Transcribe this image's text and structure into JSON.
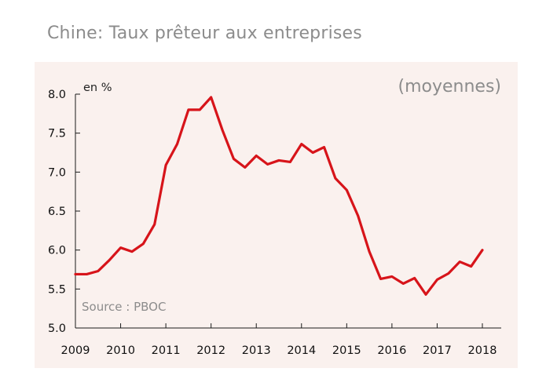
{
  "chart_data": {
    "type": "line",
    "title": "Chine: Taux prêteur aux entreprises",
    "unit_label": "en %",
    "note": "(moyennes)",
    "source": "Source : PBOC",
    "xlabel": "",
    "ylabel": "en %",
    "xlim": [
      2009,
      2018.4
    ],
    "ylim": [
      5.0,
      8.0
    ],
    "x_ticks": [
      2009,
      2010,
      2011,
      2012,
      2013,
      2014,
      2015,
      2016,
      2017,
      2018
    ],
    "x_tick_labels": [
      "2009",
      "2010",
      "2011",
      "2012",
      "2013",
      "2014",
      "2015",
      "2016",
      "2017",
      "2018"
    ],
    "y_ticks": [
      5.0,
      5.5,
      6.0,
      6.5,
      7.0,
      7.5,
      8.0
    ],
    "y_tick_labels": [
      "5.0",
      "5.5",
      "6.0",
      "6.5",
      "7.0",
      "7.5",
      "8.0"
    ],
    "grid": false,
    "colors": {
      "line": "#d7141a",
      "plot_background": "#faf1ee",
      "muted_text": "#8c8c8c",
      "axis": "#1a1a1a"
    },
    "series": [
      {
        "name": "Taux prêteur aux entreprises",
        "x": [
          2009.0,
          2009.25,
          2009.5,
          2009.75,
          2010.0,
          2010.25,
          2010.5,
          2010.75,
          2011.0,
          2011.25,
          2011.5,
          2011.75,
          2012.0,
          2012.25,
          2012.5,
          2012.75,
          2013.0,
          2013.25,
          2013.5,
          2013.75,
          2014.0,
          2014.25,
          2014.5,
          2014.75,
          2015.0,
          2015.25,
          2015.5,
          2015.75,
          2016.0,
          2016.25,
          2016.5,
          2016.75,
          2017.0,
          2017.25,
          2017.5,
          2017.75,
          2018.0
        ],
        "values": [
          5.69,
          5.69,
          5.73,
          5.87,
          6.03,
          5.98,
          6.08,
          6.33,
          7.09,
          7.36,
          7.8,
          7.8,
          7.96,
          7.54,
          7.17,
          7.06,
          7.21,
          7.1,
          7.15,
          7.13,
          7.36,
          7.25,
          7.32,
          6.92,
          6.77,
          6.44,
          5.98,
          5.63,
          5.66,
          5.57,
          5.64,
          5.43,
          5.62,
          5.7,
          5.85,
          5.79,
          6.0
        ]
      }
    ]
  }
}
